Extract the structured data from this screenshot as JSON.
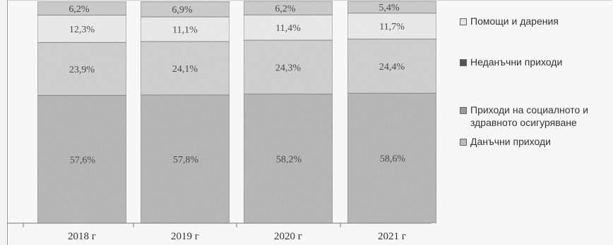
{
  "chart_data": {
    "type": "bar",
    "stacked": true,
    "categories": [
      "2018 г",
      "2019 г",
      "2020 г",
      "2021 г"
    ],
    "series": [
      {
        "name": "Данъчни приходи",
        "values": [
          57.6,
          57.8,
          58.2,
          58.6
        ],
        "labels": [
          "57,6%",
          "57,8%",
          "58,2%",
          "58,6%"
        ],
        "color": "#bdbdbd"
      },
      {
        "name": "Приходи на социалното и здравното осигуряване",
        "values": [
          23.9,
          24.1,
          24.3,
          24.4
        ],
        "labels": [
          "23,9%",
          "24,1%",
          "24,3%",
          "24,4%"
        ],
        "color": "#d6d6d6"
      },
      {
        "name": "Неданъчни приходи",
        "values": [
          12.3,
          11.1,
          11.4,
          11.7
        ],
        "labels": [
          "12,3%",
          "11,1%",
          "11,4%",
          "11,7%"
        ],
        "color": "#f1f1f1"
      },
      {
        "name": "Помощи и дарения",
        "values": [
          6.2,
          6.9,
          6.2,
          5.4
        ],
        "labels": [
          "6,2%",
          "6,9%",
          "6,2%",
          "5,4%"
        ],
        "color": "#d2d2d2"
      }
    ],
    "ylim": [
      0,
      100
    ],
    "grid": false,
    "legend_position": "right"
  },
  "legend": {
    "items": [
      {
        "label": "Помощи и дарения",
        "color": "#e6e6e6"
      },
      {
        "label": "Неданъчни приходи",
        "color": "#555555"
      },
      {
        "label": "Приходи на социалното и здравното осигуряване",
        "color": "#9a9a9a"
      },
      {
        "label": "Данъчни приходи",
        "color": "#bdbdbd"
      }
    ]
  }
}
